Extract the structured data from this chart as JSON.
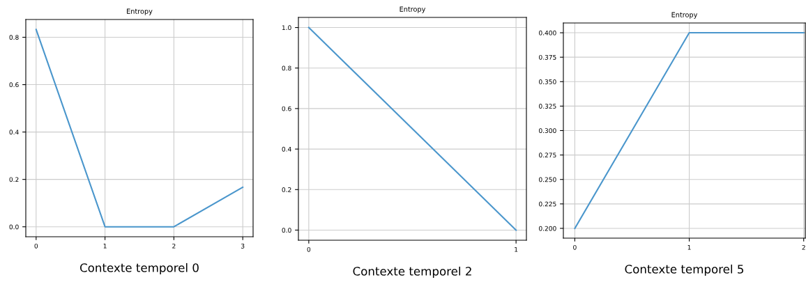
{
  "chart_data": [
    {
      "type": "line",
      "title": "Entropy",
      "xlabel": "Contexte temporel 0",
      "x": [
        0,
        1,
        2,
        3
      ],
      "series": [
        {
          "color": "#4a96cc",
          "values": [
            0.833,
            0,
            0,
            0.167
          ]
        }
      ],
      "xlim": [
        -0.15,
        3.15
      ],
      "xticks": [
        0,
        1,
        2,
        3
      ],
      "ylim": [
        -0.042,
        0.875
      ],
      "yticks": [
        {
          "value": 0,
          "label": "0.0"
        },
        0.2,
        0.4,
        0.6,
        0.8
      ],
      "grid": true
    },
    {
      "type": "line",
      "title": "Entropy",
      "xlabel": "Contexte temporel 2",
      "x": [
        0,
        1
      ],
      "series": [
        {
          "color": "#4a96cc",
          "values": [
            1,
            0
          ]
        }
      ],
      "xlim": [
        -0.05,
        1.05
      ],
      "xticks": [
        0,
        1
      ],
      "ylim": [
        -0.05,
        1.05
      ],
      "yticks": [
        {
          "value": 0,
          "label": "0.0"
        },
        0.2,
        0.4,
        0.6,
        0.8,
        {
          "value": 1,
          "label": "1.0"
        }
      ],
      "grid": true
    },
    {
      "type": "line",
      "title": "Entropy",
      "xlabel": "Contexte temporel 5",
      "x": [
        0,
        1,
        2
      ],
      "series": [
        {
          "color": "#4a96cc",
          "values": [
            0.2,
            0.4,
            0.4
          ]
        }
      ],
      "xlim": [
        -0.1,
        2.014
      ],
      "xticks": [
        0,
        1,
        2
      ],
      "ylim": [
        0.19,
        0.41
      ],
      "yticks": [
        {
          "value": 0.2,
          "label": "0.200"
        },
        {
          "value": 0.225,
          "label": "0.225"
        },
        {
          "value": 0.25,
          "label": "0.250"
        },
        {
          "value": 0.275,
          "label": "0.275"
        },
        {
          "value": 0.3,
          "label": "0.300"
        },
        {
          "value": 0.325,
          "label": "0.325"
        },
        {
          "value": 0.35,
          "label": "0.350"
        },
        {
          "value": 0.375,
          "label": "0.375"
        },
        {
          "value": 0.4,
          "label": "0.400"
        }
      ],
      "grid": true
    }
  ]
}
